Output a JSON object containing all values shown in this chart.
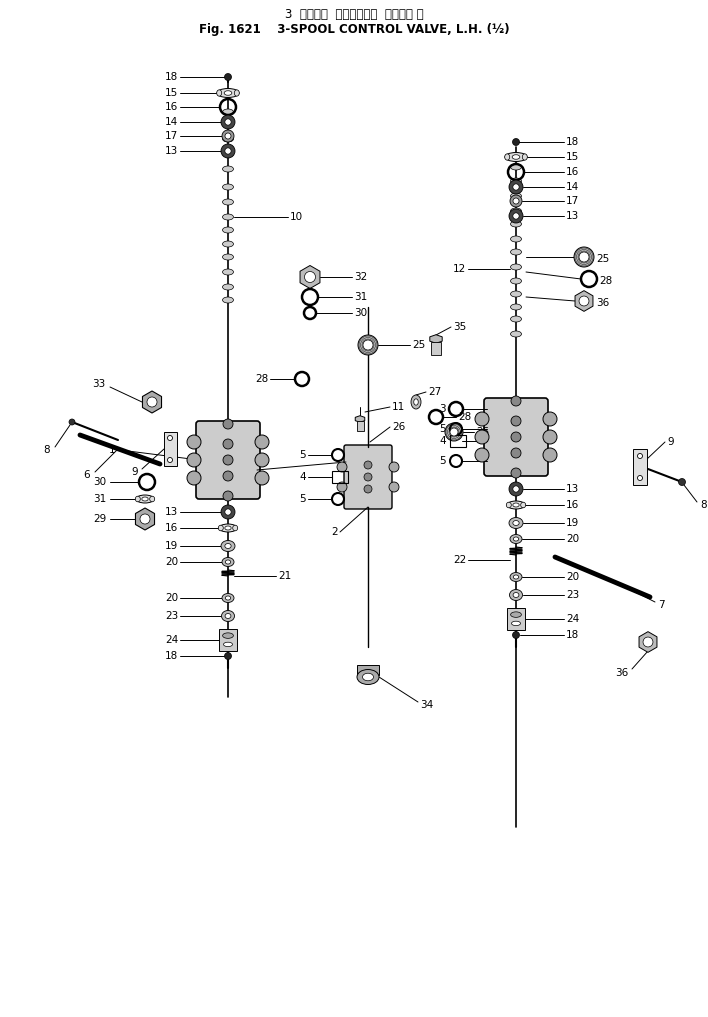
{
  "title_line1": "3  スプール  コントロール  バルブ， 左",
  "title_line2": "Fig. 1621    3-SPOOL CONTROL VALVE, L.H. (½)",
  "bg_color": "#ffffff",
  "fig_width": 7.08,
  "fig_height": 10.17,
  "dpi": 100,
  "lw_thin": 0.7,
  "lw_med": 1.0,
  "lw_thick": 1.8,
  "font_size": 7.5
}
